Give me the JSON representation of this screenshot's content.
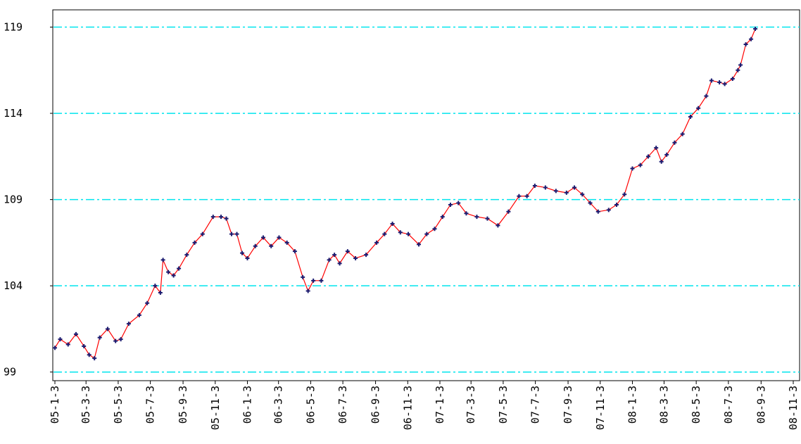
{
  "chart_data": {
    "type": "line",
    "x": [
      0,
      10,
      25,
      40,
      55,
      65,
      75,
      85,
      100,
      115,
      125,
      140,
      160,
      175,
      190,
      200,
      205,
      215,
      225,
      235,
      250,
      265,
      280,
      300,
      315,
      325,
      335,
      345,
      355,
      365,
      380,
      395,
      410,
      425,
      440,
      455,
      470,
      480,
      490,
      505,
      520,
      530,
      540,
      555,
      570,
      590,
      610,
      625,
      640,
      655,
      670,
      690,
      705,
      720,
      735,
      750,
      765,
      780,
      800,
      820,
      840,
      860,
      880,
      895,
      910,
      930,
      950,
      970,
      985,
      1000,
      1015,
      1030,
      1050,
      1065,
      1080,
      1095,
      1110,
      1125,
      1140,
      1150,
      1160,
      1175,
      1190,
      1205,
      1220,
      1235,
      1245,
      1260,
      1270,
      1285,
      1295,
      1300,
      1310,
      1320,
      1328
    ],
    "series": [
      {
        "color": "#ff0000",
        "marker_color": "#1c1c70",
        "values": [
          100.4,
          100.9,
          100.6,
          101.2,
          100.5,
          100.0,
          99.8,
          101.0,
          101.5,
          100.8,
          100.9,
          101.8,
          102.3,
          103.0,
          104.0,
          103.6,
          105.5,
          104.8,
          104.6,
          105.0,
          105.8,
          106.5,
          107.0,
          108.0,
          108.0,
          107.9,
          107.0,
          107.0,
          105.9,
          105.6,
          106.3,
          106.8,
          106.3,
          106.8,
          106.5,
          106.0,
          104.5,
          103.7,
          104.3,
          104.3,
          105.5,
          105.8,
          105.3,
          106.0,
          105.6,
          105.8,
          106.5,
          107.0,
          107.6,
          107.1,
          107.0,
          106.4,
          107.0,
          107.3,
          108.0,
          108.7,
          108.8,
          108.2,
          108.0,
          107.9,
          107.5,
          108.3,
          109.2,
          109.2,
          109.8,
          109.7,
          109.5,
          109.4,
          109.7,
          109.3,
          108.8,
          108.3,
          108.4,
          108.7,
          109.3,
          110.8,
          111.0,
          111.5,
          112.0,
          111.2,
          111.6,
          112.3,
          112.8,
          113.8,
          114.3,
          115.0,
          115.9,
          115.8,
          115.7,
          116.0,
          116.5,
          116.8,
          118.0,
          118.3,
          118.9
        ]
      }
    ],
    "xlim": [
      -4,
      1412
    ],
    "xticks": [
      {
        "value": 0,
        "label": "05-1-3"
      },
      {
        "value": 59,
        "label": "05-3-3"
      },
      {
        "value": 120,
        "label": "05-5-3"
      },
      {
        "value": 181,
        "label": "05-7-3"
      },
      {
        "value": 243,
        "label": "05-9-3"
      },
      {
        "value": 304,
        "label": "05-11-3"
      },
      {
        "value": 365,
        "label": "06-1-3"
      },
      {
        "value": 424,
        "label": "06-3-3"
      },
      {
        "value": 485,
        "label": "06-5-3"
      },
      {
        "value": 546,
        "label": "06-7-3"
      },
      {
        "value": 608,
        "label": "06-9-3"
      },
      {
        "value": 669,
        "label": "06-11-3"
      },
      {
        "value": 730,
        "label": "07-1-3"
      },
      {
        "value": 789,
        "label": "07-3-3"
      },
      {
        "value": 850,
        "label": "07-5-3"
      },
      {
        "value": 911,
        "label": "07-7-3"
      },
      {
        "value": 973,
        "label": "07-9-3"
      },
      {
        "value": 1034,
        "label": "07-11-3"
      },
      {
        "value": 1095,
        "label": "08-1-3"
      },
      {
        "value": 1155,
        "label": "08-3-3"
      },
      {
        "value": 1216,
        "label": "08-5-3"
      },
      {
        "value": 1277,
        "label": "08-7-3"
      },
      {
        "value": 1339,
        "label": "08-9-3"
      },
      {
        "value": 1400,
        "label": "08-11-3"
      }
    ],
    "ylim": [
      98.5,
      120
    ],
    "yticks": [
      99,
      104,
      109,
      114,
      119
    ],
    "grid": true,
    "grid_color": "#00e5ee"
  }
}
